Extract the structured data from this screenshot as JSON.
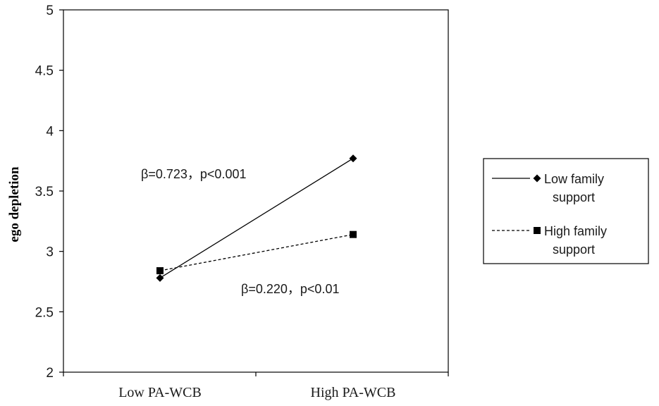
{
  "chart_data": {
    "type": "line",
    "categories": [
      "Low PA-WCB",
      "High PA-WCB"
    ],
    "ylabel": "ego depletion",
    "xlabel": "",
    "ylim": [
      2,
      5
    ],
    "yticks": [
      "2",
      "2.5",
      "3",
      "3.5",
      "4",
      "4.5",
      "5"
    ],
    "grid": false,
    "legend_position": "right",
    "series": [
      {
        "name": "Low family support",
        "name_lines": [
          "Low family",
          "support"
        ],
        "values": [
          2.78,
          3.77
        ],
        "line_style": "solid",
        "marker": "diamond",
        "color": "#000000",
        "annotation": "β=0.723，p<0.001"
      },
      {
        "name": "High family support",
        "name_lines": [
          "High family",
          "support"
        ],
        "values": [
          2.84,
          3.14
        ],
        "line_style": "dashed",
        "marker": "square",
        "color": "#000000",
        "annotation": "β=0.220，p<0.01"
      }
    ]
  }
}
